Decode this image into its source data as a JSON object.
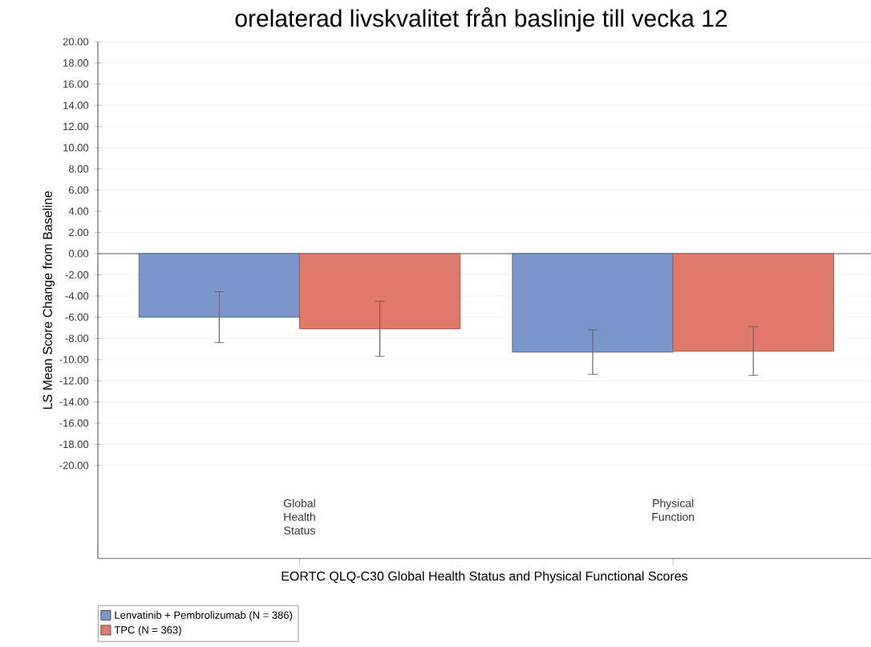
{
  "chart_data": {
    "type": "bar",
    "title": "orelaterad livskvalitet från baslinje till vecka 12",
    "xlabel": "EORTC QLQ-C30 Global Health Status and Physical Functional Scores",
    "ylabel": "LS Mean Score Change from Baseline",
    "categories": [
      "Global Health Status",
      "Physical Function"
    ],
    "series": [
      {
        "name": "Lenvatinib + Pembrolizumab (N = 386)",
        "color": "#7b96cb",
        "values": [
          -6.0,
          -9.3
        ],
        "errors": [
          2.4,
          2.1
        ]
      },
      {
        "name": "TPC (N = 363)",
        "color": "#e07b6b",
        "values": [
          -7.1,
          -9.2
        ],
        "errors": [
          2.6,
          2.3
        ]
      }
    ],
    "ylim": [
      -28.8,
      20
    ],
    "yticks": [
      {
        "value": 20,
        "label": "20.00"
      },
      {
        "value": 18,
        "label": "18.00"
      },
      {
        "value": 16,
        "label": "16.00"
      },
      {
        "value": 14,
        "label": "14.00"
      },
      {
        "value": 12,
        "label": "12.00"
      },
      {
        "value": 10,
        "label": "10.00"
      },
      {
        "value": 8,
        "label": "8.00"
      },
      {
        "value": 6,
        "label": "6.00"
      },
      {
        "value": 4,
        "label": "4.00"
      },
      {
        "value": 2,
        "label": "2.00"
      },
      {
        "value": 0,
        "label": "0.00"
      },
      {
        "value": -2,
        "label": "-2.00"
      },
      {
        "value": -4,
        "label": "-4.00"
      },
      {
        "value": -6,
        "label": "-6.00"
      },
      {
        "value": -8,
        "label": "-8.00"
      },
      {
        "value": -10,
        "label": "-10.00"
      },
      {
        "value": -12,
        "label": "-12.00"
      },
      {
        "value": -14,
        "label": "-14.00"
      },
      {
        "value": -16,
        "label": "-16.00"
      },
      {
        "value": -18,
        "label": "-18.00"
      },
      {
        "value": -20,
        "label": "-20.00"
      }
    ],
    "grid": "y",
    "legend": "bottom left"
  }
}
